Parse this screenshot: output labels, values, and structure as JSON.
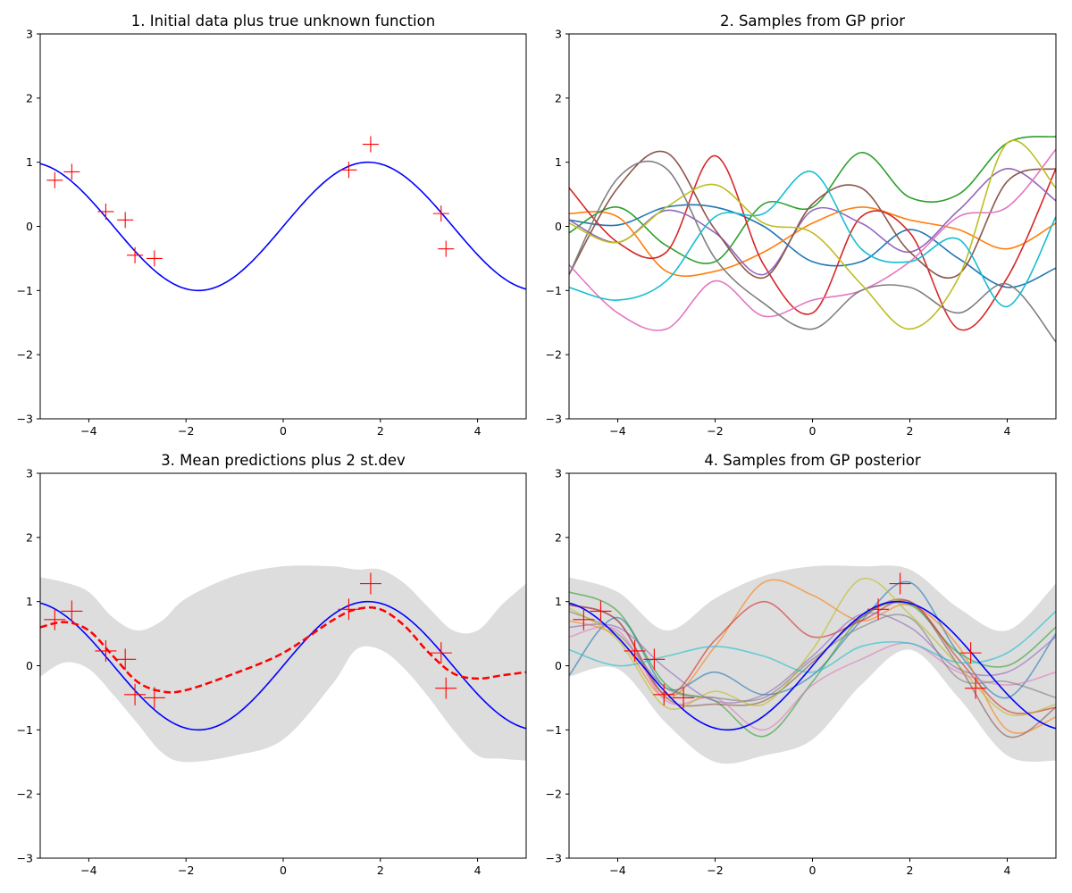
{
  "chart_data": [
    {
      "type": "line",
      "title": "1. Initial data plus true unknown function",
      "xlim": [
        -5,
        5
      ],
      "ylim": [
        -3,
        3
      ],
      "xticks": [
        -4,
        -2,
        0,
        2,
        4
      ],
      "yticks": [
        -3,
        -2,
        -1,
        0,
        1,
        2,
        3
      ],
      "true_function": {
        "expression": "sin(0.9x)",
        "color": "#0000ff"
      },
      "observations": {
        "color": "#ff0000",
        "marker": "plus",
        "x": [
          -4.7,
          -4.35,
          -3.65,
          -3.25,
          -3.05,
          -2.65,
          1.35,
          1.8,
          3.25,
          3.35
        ],
        "y": [
          0.72,
          0.85,
          0.23,
          0.1,
          -0.45,
          -0.5,
          0.88,
          1.28,
          0.2,
          -0.35
        ]
      }
    },
    {
      "type": "line",
      "title": "2. Samples from GP prior",
      "xlim": [
        -5,
        5
      ],
      "ylim": [
        -3,
        3
      ],
      "xticks": [
        -4,
        -2,
        0,
        2,
        4
      ],
      "yticks": [
        -3,
        -2,
        -1,
        0,
        1,
        2,
        3
      ],
      "x": [
        -5,
        -4,
        -3,
        -2,
        -1,
        0,
        1,
        2,
        3,
        4,
        5
      ],
      "series": [
        {
          "color": "#1f77b4",
          "values": [
            0.1,
            0.02,
            0.3,
            0.3,
            0.0,
            -0.55,
            -0.55,
            -0.05,
            -0.5,
            -0.95,
            -0.65
          ]
        },
        {
          "color": "#ff7f0e",
          "values": [
            0.2,
            0.15,
            -0.7,
            -0.7,
            -0.4,
            0.05,
            0.3,
            0.1,
            -0.05,
            -0.35,
            0.05
          ]
        },
        {
          "color": "#2ca02c",
          "values": [
            -0.1,
            0.3,
            -0.3,
            -0.55,
            0.35,
            0.3,
            1.15,
            0.45,
            0.5,
            1.3,
            1.4
          ]
        },
        {
          "color": "#d62728",
          "values": [
            0.6,
            -0.25,
            -0.4,
            1.1,
            -0.6,
            -1.35,
            0.15,
            -0.1,
            -1.6,
            -0.8,
            0.9
          ]
        },
        {
          "color": "#9467bd",
          "values": [
            0.1,
            -0.25,
            0.25,
            -0.1,
            -0.75,
            0.25,
            0.05,
            -0.4,
            0.25,
            0.9,
            0.4
          ]
        },
        {
          "color": "#8c564b",
          "values": [
            -0.75,
            0.6,
            1.15,
            -0.05,
            -0.8,
            0.35,
            0.6,
            -0.4,
            -0.75,
            0.7,
            0.9
          ]
        },
        {
          "color": "#e377c2",
          "values": [
            -0.6,
            -1.35,
            -1.6,
            -0.85,
            -1.4,
            -1.15,
            -1.0,
            -0.55,
            0.15,
            0.3,
            1.2
          ]
        },
        {
          "color": "#7f7f7f",
          "values": [
            -0.75,
            0.75,
            0.9,
            -0.5,
            -1.2,
            -1.6,
            -1.0,
            -0.95,
            -1.35,
            -0.9,
            -1.8
          ]
        },
        {
          "color": "#bcbd22",
          "values": [
            0.05,
            -0.25,
            0.3,
            0.65,
            0.05,
            -0.1,
            -0.9,
            -1.6,
            -0.8,
            1.3,
            0.6
          ]
        },
        {
          "color": "#17becf",
          "values": [
            -0.95,
            -1.15,
            -0.85,
            0.15,
            0.2,
            0.85,
            -0.35,
            -0.55,
            -0.2,
            -1.25,
            0.15
          ]
        }
      ]
    },
    {
      "type": "line",
      "title": "3. Mean predictions plus 2 st.dev",
      "xlim": [
        -5,
        5
      ],
      "ylim": [
        -3,
        3
      ],
      "xticks": [
        -4,
        -2,
        0,
        2,
        4
      ],
      "yticks": [
        -3,
        -2,
        -1,
        0,
        1,
        2,
        3
      ],
      "x": [
        -5,
        -4.5,
        -4,
        -3.5,
        -3,
        -2.5,
        -2,
        -1,
        0,
        1,
        1.5,
        2,
        2.5,
        3,
        3.5,
        4,
        4.5,
        5
      ],
      "mean": {
        "color": "#ff0000",
        "style": "dashed",
        "values": [
          0.6,
          0.68,
          0.55,
          0.15,
          -0.25,
          -0.4,
          -0.38,
          -0.12,
          0.2,
          0.7,
          0.88,
          0.88,
          0.62,
          0.2,
          -0.12,
          -0.2,
          -0.15,
          -0.1
        ]
      },
      "band_upper": {
        "color": "#dddddd",
        "values": [
          1.38,
          1.3,
          1.15,
          0.75,
          0.55,
          0.7,
          1.05,
          1.4,
          1.55,
          1.55,
          1.5,
          1.5,
          1.28,
          0.9,
          0.55,
          0.55,
          0.95,
          1.28
        ]
      },
      "band_lower": {
        "color": "#dddddd",
        "values": [
          -0.17,
          0.05,
          -0.05,
          -0.45,
          -0.9,
          -1.35,
          -1.5,
          -1.4,
          -1.15,
          -0.3,
          0.25,
          0.25,
          -0.05,
          -0.5,
          -1.0,
          -1.4,
          -1.45,
          -1.48
        ]
      },
      "true_function": {
        "expression": "sin(0.9x)",
        "color": "#0000ff"
      },
      "observations": {
        "color": "#ff0000",
        "marker": "plus",
        "x": [
          -4.7,
          -4.35,
          -3.65,
          -3.25,
          -3.05,
          -2.65,
          1.35,
          1.8,
          3.25,
          3.35
        ],
        "y": [
          0.72,
          0.85,
          0.23,
          0.1,
          -0.45,
          -0.5,
          0.88,
          1.28,
          0.2,
          -0.35
        ]
      }
    },
    {
      "type": "line",
      "title": "4. Samples from GP posterior",
      "xlim": [
        -5,
        5
      ],
      "ylim": [
        -3,
        3
      ],
      "xticks": [
        -4,
        -2,
        0,
        2,
        4
      ],
      "yticks": [
        -3,
        -2,
        -1,
        0,
        1,
        2,
        3
      ],
      "x": [
        -5,
        -4,
        -3,
        -2,
        -1,
        0,
        1,
        2,
        3,
        4,
        5
      ],
      "band_upper": {
        "color": "#dddddd",
        "values": [
          1.38,
          1.15,
          0.55,
          1.05,
          1.4,
          1.55,
          1.55,
          1.5,
          0.9,
          0.55,
          1.28
        ]
      },
      "band_lower": {
        "color": "#dddddd",
        "values": [
          -0.17,
          -0.05,
          -0.9,
          -1.5,
          -1.4,
          -1.15,
          -0.3,
          0.25,
          -0.5,
          -1.4,
          -1.48
        ]
      },
      "series": [
        {
          "color": "#1f77b4",
          "values": [
            -0.15,
            0.75,
            -0.35,
            -0.1,
            -0.45,
            -0.15,
            0.7,
            1.3,
            0.2,
            -0.5,
            0.5
          ]
        },
        {
          "color": "#ff7f0e",
          "values": [
            0.7,
            0.45,
            -0.5,
            0.3,
            1.3,
            1.1,
            0.7,
            0.95,
            0.3,
            -1.0,
            -0.8
          ]
        },
        {
          "color": "#2ca02c",
          "values": [
            1.15,
            0.85,
            -0.3,
            -0.55,
            -1.1,
            -0.25,
            0.75,
            0.95,
            0.2,
            0.0,
            0.6
          ]
        },
        {
          "color": "#d62728",
          "values": [
            0.95,
            0.7,
            -0.45,
            0.4,
            1.0,
            0.45,
            0.7,
            1.0,
            0.1,
            -0.7,
            -0.65
          ]
        },
        {
          "color": "#9467bd",
          "values": [
            0.6,
            0.6,
            -0.05,
            -0.55,
            -0.45,
            0.15,
            0.8,
            0.6,
            -0.05,
            -0.1,
            0.45
          ]
        },
        {
          "color": "#8c564b",
          "values": [
            0.95,
            0.7,
            -0.5,
            -0.6,
            -0.55,
            0.05,
            0.75,
            1.0,
            0.0,
            -1.1,
            -0.65
          ]
        },
        {
          "color": "#e377c2",
          "values": [
            0.45,
            0.55,
            -0.55,
            -0.5,
            -1.0,
            -0.3,
            0.1,
            0.35,
            -0.1,
            -0.3,
            -0.1
          ]
        },
        {
          "color": "#7f7f7f",
          "values": [
            0.85,
            0.5,
            -0.35,
            -0.5,
            -0.5,
            0.1,
            0.6,
            0.75,
            -0.2,
            -0.25,
            -0.5
          ]
        },
        {
          "color": "#bcbd22",
          "values": [
            0.9,
            0.4,
            -0.65,
            -0.4,
            -0.6,
            0.25,
            1.35,
            0.8,
            0.0,
            -0.75,
            -0.6
          ]
        },
        {
          "color": "#17becf",
          "values": [
            0.25,
            0.0,
            0.15,
            0.3,
            0.15,
            -0.1,
            0.3,
            0.35,
            0.05,
            0.2,
            0.85
          ]
        }
      ],
      "true_function": {
        "expression": "sin(0.9x)",
        "color": "#0000ff"
      },
      "observations": {
        "color": "#ff0000",
        "marker": "plus",
        "x": [
          -4.7,
          -4.35,
          -3.65,
          -3.25,
          -3.05,
          -2.65,
          1.35,
          1.8,
          3.25,
          3.35
        ],
        "y": [
          0.72,
          0.85,
          0.23,
          0.1,
          -0.45,
          -0.5,
          0.88,
          1.28,
          0.2,
          -0.35
        ]
      }
    }
  ]
}
